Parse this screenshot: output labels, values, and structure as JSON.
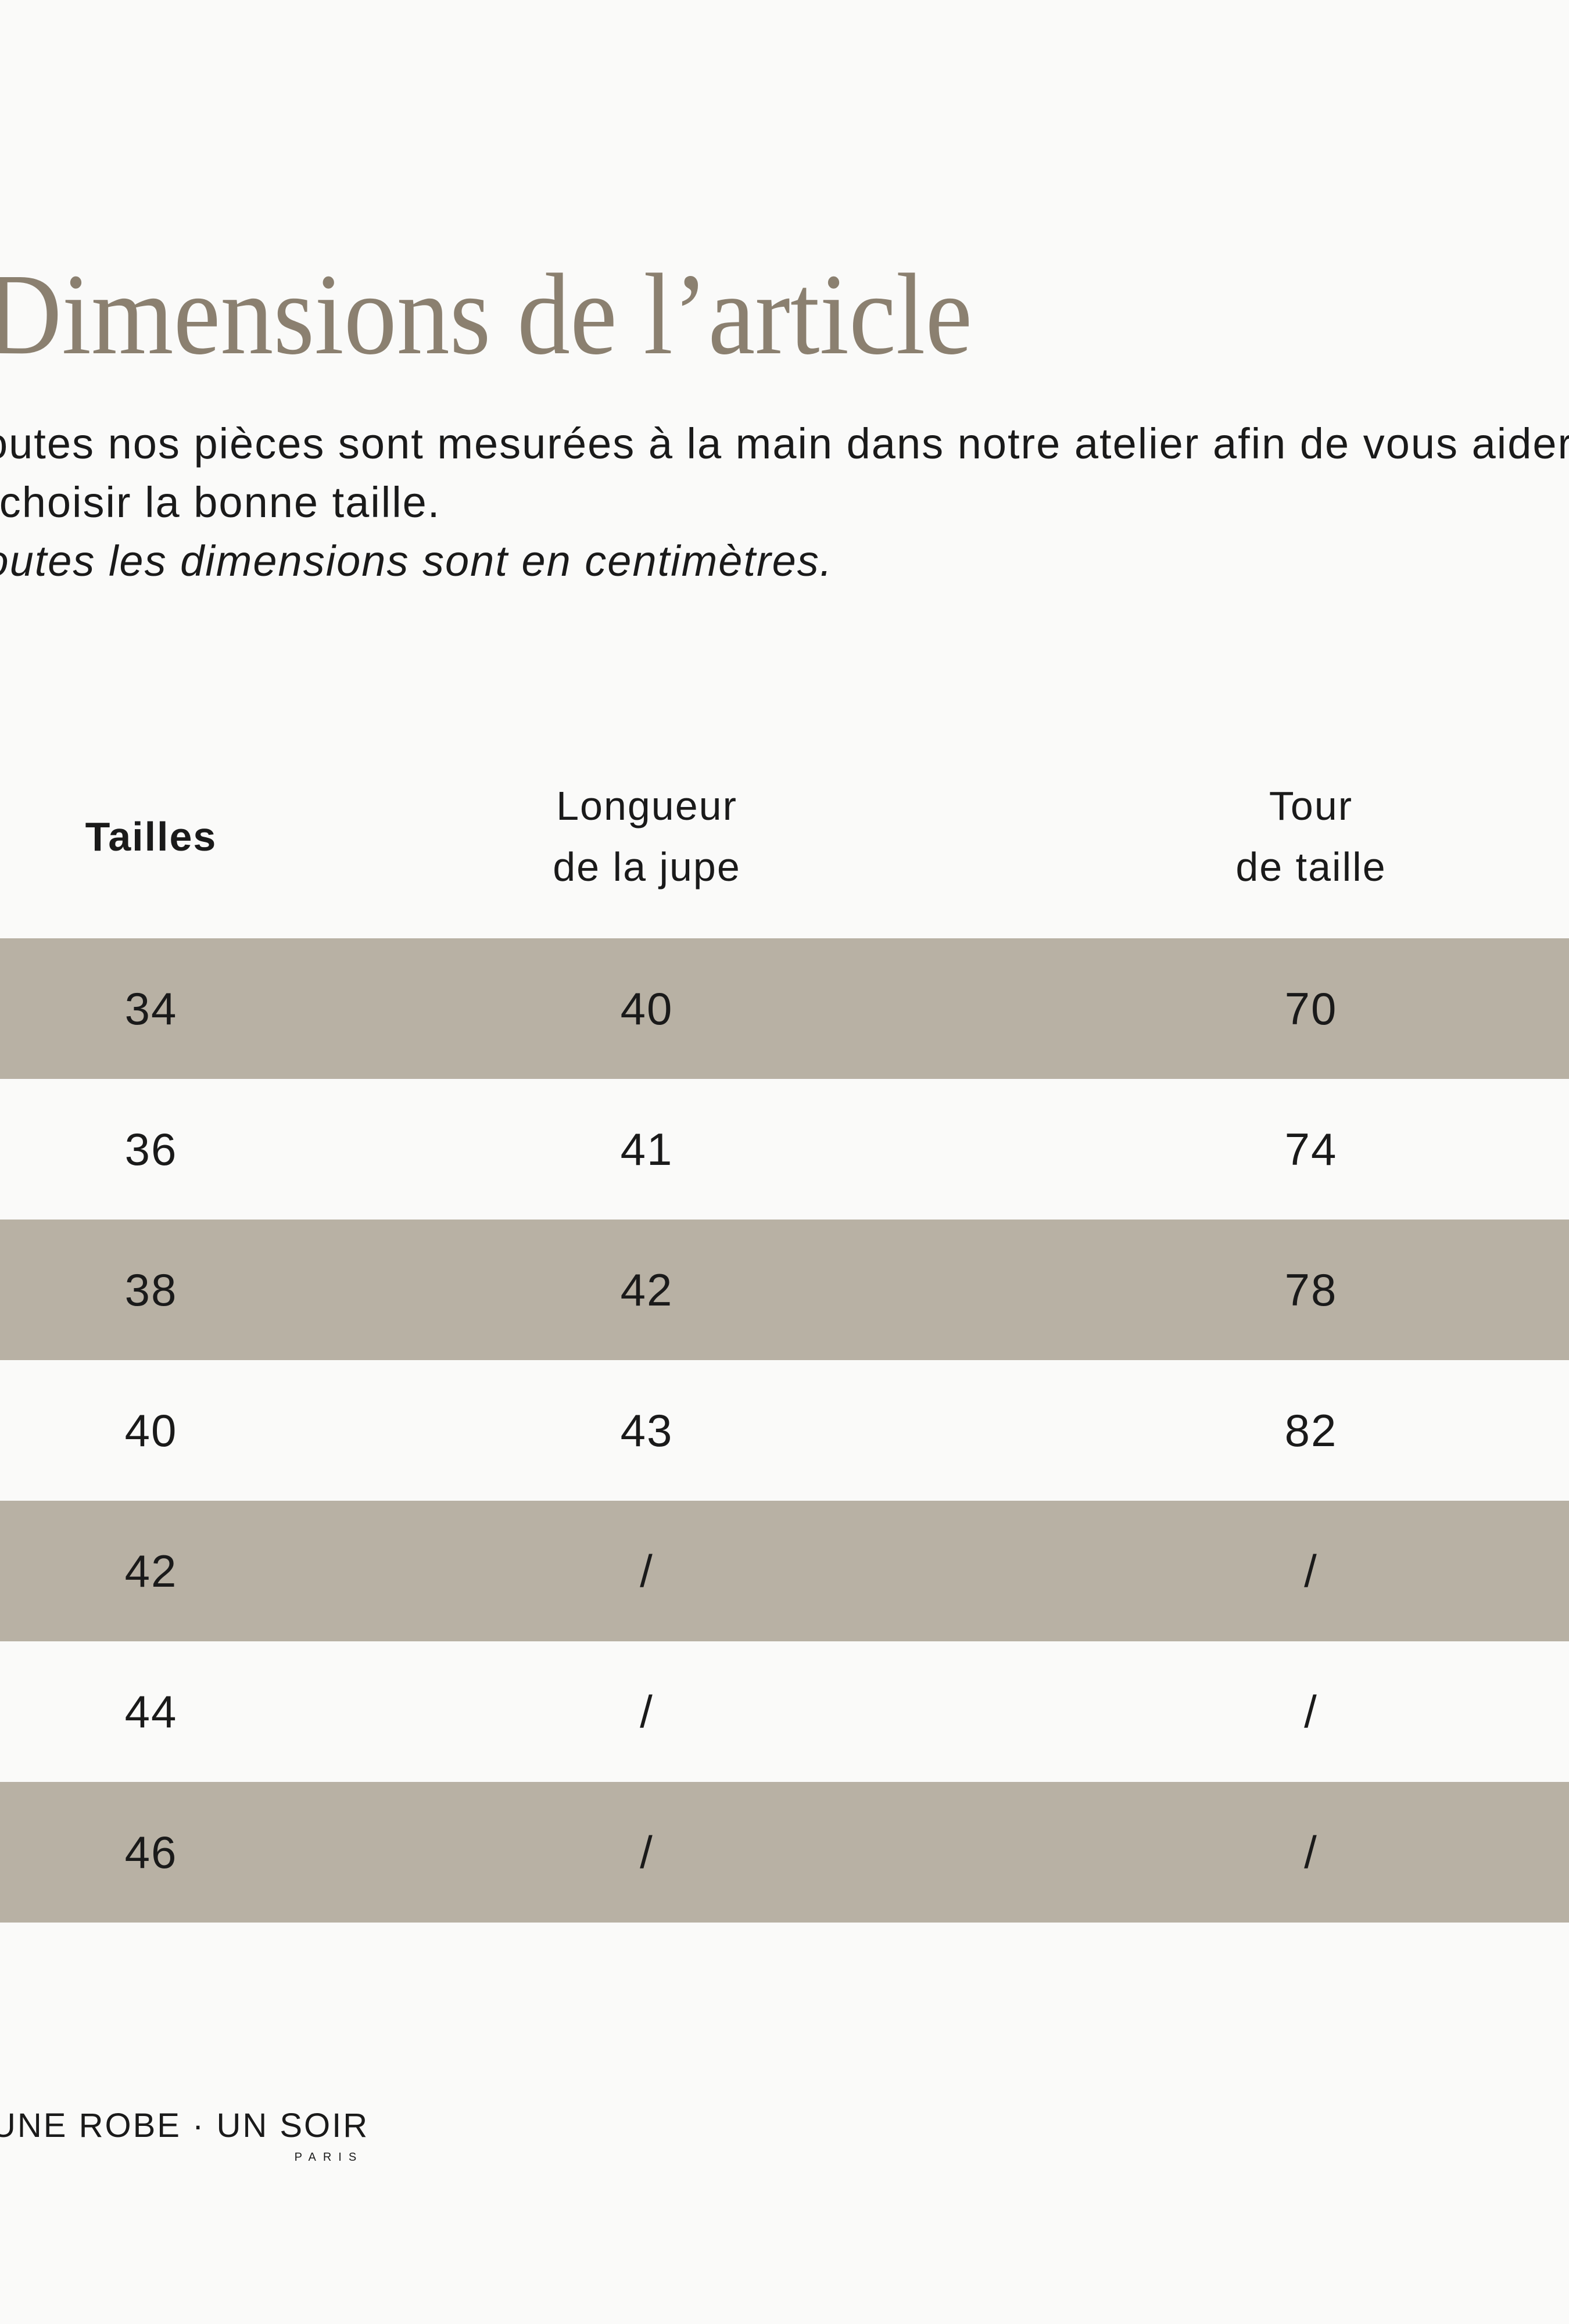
{
  "colors": {
    "background": "#fafaf9",
    "row_stripe_taupe": "#b8b1a4",
    "title": "#8b8070",
    "text": "#1a1a1a"
  },
  "header": {
    "title": "Dimensions de l’article",
    "intro_line1": "Toutes nos pièces sont mesurées à la main dans notre atelier afin de vous aider",
    "intro_line2": "à choisir la bonne taille.",
    "note": "Toutes les dimensions sont en centimètres."
  },
  "table": {
    "columns": [
      {
        "lines": [
          "Tailles"
        ]
      },
      {
        "lines": [
          "Longueur",
          "de la jupe"
        ]
      },
      {
        "lines": [
          "Tour",
          "de taille"
        ]
      }
    ],
    "rows": [
      {
        "taille": "34",
        "longueur": "40",
        "tour": "70"
      },
      {
        "taille": "36",
        "longueur": "41",
        "tour": "74"
      },
      {
        "taille": "38",
        "longueur": "42",
        "tour": "78"
      },
      {
        "taille": "40",
        "longueur": "43",
        "tour": "82"
      },
      {
        "taille": "42",
        "longueur": "/",
        "tour": "/"
      },
      {
        "taille": "44",
        "longueur": "/",
        "tour": "/"
      },
      {
        "taille": "46",
        "longueur": "/",
        "tour": "/"
      }
    ]
  },
  "footer": {
    "brand": "UNE ROBE · UN SOIR",
    "city": "PARIS"
  }
}
